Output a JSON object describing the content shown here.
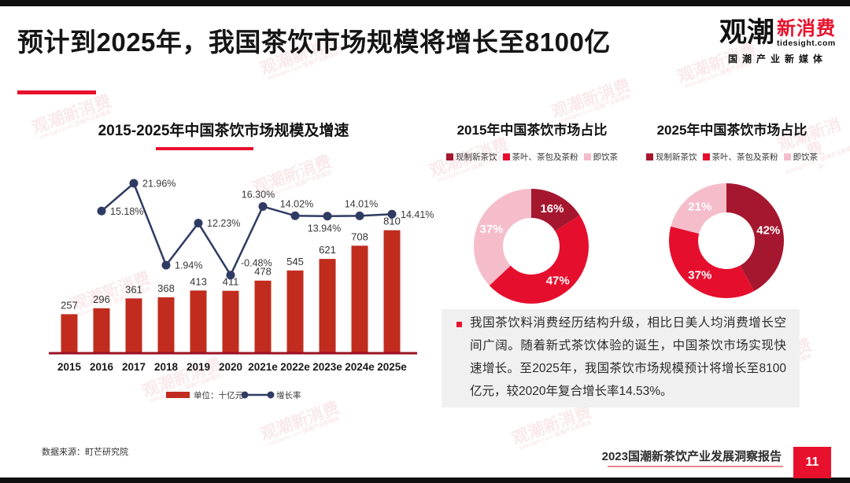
{
  "page": {
    "title": "预计到2025年，我国茶饮市场规模将增长至8100亿",
    "page_number": "11",
    "footer_source": "数据来源：町芒研究院",
    "footer_report": "2023国潮新茶饮产业发展洞察报告"
  },
  "logo": {
    "name_black": "观潮",
    "name_red": "新消费",
    "domain": "tidesight.com",
    "tagline": "国潮产业新媒体"
  },
  "watermark": {
    "line1": "观潮新消费",
    "line2": "tidesight.com 国潮产业新媒体"
  },
  "colors": {
    "accent_red": "#e8112d",
    "bar_red": "#c12c1f",
    "line_navy": "#2f3b63",
    "axis_dark_red": "#9b1123",
    "donut_dark_red": "#a5172f",
    "donut_red": "#e60e2d",
    "donut_pink": "#f5bdca",
    "panel_gray": "#f0f0f0"
  },
  "insight": {
    "text": "我国茶饮料消费经历结构升级，相比日美人均消费增长空间广阔。随着新式茶饮体验的诞生，中国茶饮市场实现快速增长。至2025年，我国茶饮市场规模预计将增长至8100亿元，较2020年复合增长率14.53%。"
  },
  "chart_data": [
    {
      "type": "bar",
      "title": "2015-2025年中国茶饮市场规模及增速",
      "categories": [
        "2015",
        "2016",
        "2017",
        "2018",
        "2019",
        "2020",
        "2021e",
        "2022e",
        "2023e",
        "2024e",
        "2025e"
      ],
      "series": [
        {
          "name": "单位：十亿元",
          "type": "bar",
          "color": "#c12c1f",
          "values": [
            257,
            296,
            361,
            368,
            413,
            411,
            478,
            545,
            621,
            708,
            810
          ]
        },
        {
          "name": "增长率",
          "type": "line",
          "color": "#2f3b63",
          "values": [
            null,
            15.18,
            21.96,
            1.94,
            12.23,
            -0.48,
            16.3,
            14.02,
            13.94,
            14.01,
            14.41
          ],
          "labels": [
            "",
            "15.18%",
            "21.96%",
            "1.94%",
            "12.23%",
            "-0.48%",
            "16.30%",
            "14.02%",
            "13.94%",
            "14.01%",
            "14.41%"
          ]
        }
      ],
      "legend_position": "bottom",
      "grid": false
    },
    {
      "type": "pie",
      "title": "2015年中国茶饮市场占比",
      "categories": [
        "现制新茶饮",
        "茶叶、茶包及茶粉",
        "即饮茶"
      ],
      "values": [
        16,
        47,
        37
      ],
      "labels": [
        "16%",
        "47%",
        "37%"
      ],
      "colors": [
        "#a5172f",
        "#e60e2d",
        "#f5bdca"
      ],
      "donut": true,
      "legend_position": "top"
    },
    {
      "type": "pie",
      "title": "2025年中国茶饮市场占比",
      "categories": [
        "现制新茶饮",
        "茶叶、茶包及茶粉",
        "即饮茶"
      ],
      "values": [
        42,
        37,
        21
      ],
      "labels": [
        "42%",
        "37%",
        "21%"
      ],
      "colors": [
        "#a5172f",
        "#e60e2d",
        "#f5bdca"
      ],
      "donut": true,
      "legend_position": "top"
    }
  ]
}
